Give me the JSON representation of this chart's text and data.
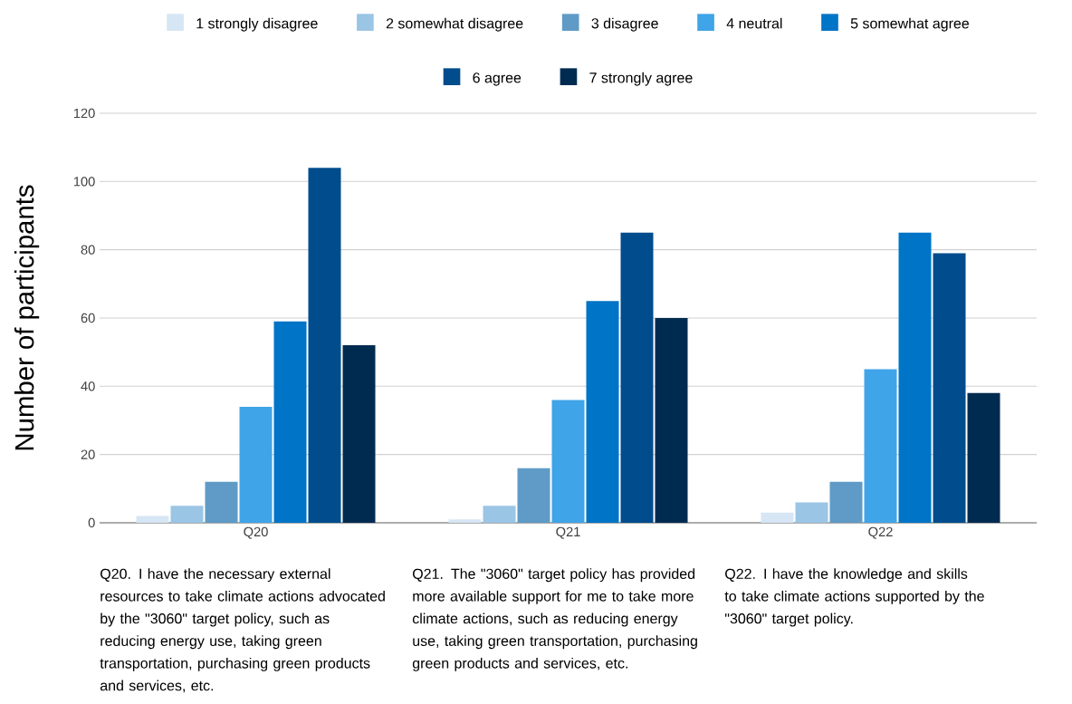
{
  "chart_data": {
    "type": "bar",
    "ylabel": "Number of participants",
    "categories": [
      "Q20",
      "Q21",
      "Q22"
    ],
    "series": [
      {
        "name": "1 strongly disagree",
        "color": "#d6e6f4",
        "values": [
          2,
          1,
          3
        ]
      },
      {
        "name": "2 somewhat disagree",
        "color": "#9ac5e5",
        "values": [
          5,
          5,
          6
        ]
      },
      {
        "name": "3 disagree",
        "color": "#5f9bc6",
        "values": [
          12,
          16,
          12
        ]
      },
      {
        "name": "4 neutral",
        "color": "#3fa4e8",
        "values": [
          34,
          36,
          45
        ]
      },
      {
        "name": "5 somewhat agree",
        "color": "#0074c6",
        "values": [
          59,
          65,
          85
        ]
      },
      {
        "name": "6 agree",
        "color": "#004c8c",
        "values": [
          104,
          85,
          79
        ]
      },
      {
        "name": "7 strongly agree",
        "color": "#002b50",
        "values": [
          52,
          60,
          38
        ]
      }
    ],
    "ylim": [
      0,
      120
    ],
    "yticks": [
      0,
      20,
      40,
      60,
      80,
      100,
      120
    ],
    "grid": "y",
    "legend": "top",
    "annotations": [
      "Q20. I have the necessary external resources to take climate actions advocated by the \"3060\" target policy, such as reducing energy use, taking green transportation, purchasing green products and services, etc.",
      "Q21. The \"3060\" target policy has provided more available support for me to take more climate actions, such as reducing energy use, taking green transportation, purchasing green products and services, etc.",
      "Q22. I have the knowledge and skills to take climate actions supported by the \"3060\" target policy."
    ]
  }
}
